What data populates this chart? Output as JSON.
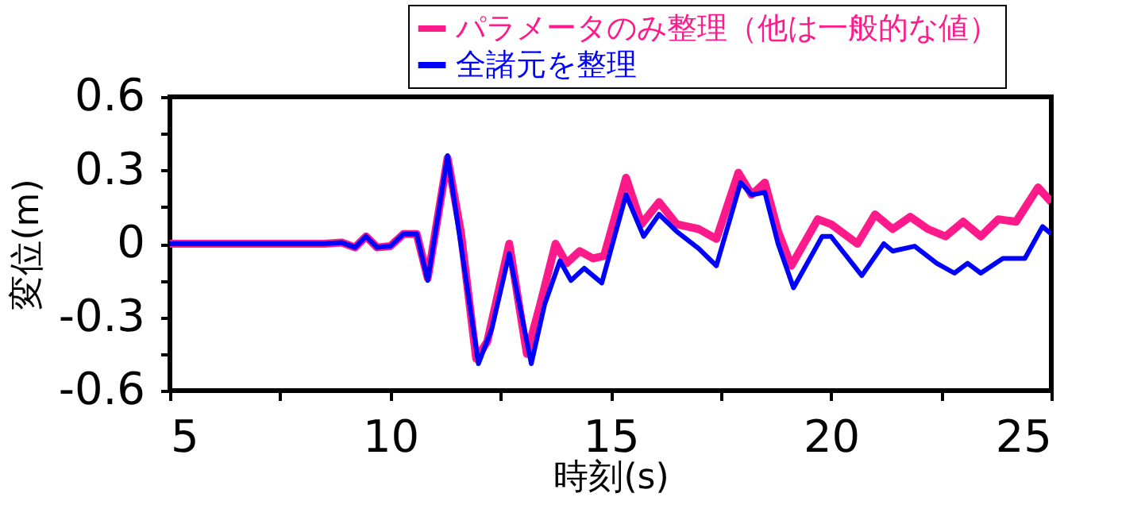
{
  "chart_data": {
    "type": "line",
    "xlabel": "時刻(s)",
    "ylabel": "変位(m)",
    "xlim": [
      5,
      25
    ],
    "xticks": [
      5,
      {
        "value": 7.5,
        "label": null
      },
      10,
      {
        "value": 12.5,
        "label": null
      },
      15,
      {
        "value": 17.5,
        "label": null
      },
      20,
      {
        "value": 22.5,
        "label": null
      },
      25
    ],
    "ylim": [
      -0.6,
      0.6
    ],
    "yticks": [
      -0.6,
      {
        "value": -0.45,
        "label": null
      },
      -0.3,
      {
        "value": -0.15,
        "label": null
      },
      0,
      {
        "value": 0.15,
        "label": null
      },
      0.3,
      {
        "value": 0.45,
        "label": null
      },
      0.6
    ],
    "grid": false,
    "legend": "top right",
    "line_style": "solid",
    "marker": "none",
    "series": [
      {
        "name": "パラメータのみ整理（他は一般的な値）",
        "color": "#ff1a8c",
        "x": [
          5,
          8.5,
          8.9,
          9.2,
          9.45,
          9.7,
          10.0,
          10.3,
          10.6,
          10.85,
          11.3,
          11.6,
          11.95,
          12.2,
          12.7,
          13.1,
          13.4,
          13.75,
          14.0,
          14.3,
          14.6,
          14.85,
          15.35,
          15.7,
          16.1,
          16.5,
          17.0,
          17.4,
          17.9,
          18.2,
          18.5,
          18.8,
          19.1,
          19.7,
          20.0,
          20.6,
          21.0,
          21.4,
          21.8,
          22.2,
          22.6,
          23.0,
          23.4,
          23.8,
          24.2,
          24.7,
          25.0
        ],
        "values": [
          0,
          0,
          0.005,
          -0.015,
          0.03,
          -0.015,
          -0.01,
          0.04,
          0.04,
          -0.14,
          0.35,
          0.05,
          -0.47,
          -0.4,
          0.0,
          -0.45,
          -0.25,
          0.0,
          -0.08,
          -0.03,
          -0.06,
          -0.05,
          0.27,
          0.08,
          0.17,
          0.08,
          0.06,
          0.02,
          0.29,
          0.2,
          0.25,
          0.05,
          -0.09,
          0.1,
          0.08,
          0.0,
          0.12,
          0.06,
          0.11,
          0.06,
          0.03,
          0.09,
          0.03,
          0.1,
          0.09,
          0.23,
          0.17
        ]
      },
      {
        "name": "全諸元を整理",
        "color": "#0000ff",
        "x": [
          5,
          8.5,
          8.9,
          9.2,
          9.45,
          9.7,
          10.0,
          10.3,
          10.6,
          10.85,
          11.3,
          11.6,
          12.0,
          12.3,
          12.7,
          13.2,
          13.5,
          13.85,
          14.1,
          14.4,
          14.8,
          15.35,
          15.75,
          16.1,
          16.5,
          17.0,
          17.4,
          17.95,
          18.2,
          18.5,
          18.8,
          19.15,
          19.8,
          20.0,
          20.7,
          21.2,
          21.4,
          21.9,
          22.4,
          22.8,
          23.1,
          23.4,
          23.9,
          24.4,
          24.8,
          25.0
        ],
        "values": [
          0,
          0,
          0.005,
          -0.015,
          0.03,
          -0.015,
          -0.01,
          0.04,
          0.04,
          -0.15,
          0.36,
          0.0,
          -0.49,
          -0.35,
          -0.04,
          -0.49,
          -0.25,
          -0.07,
          -0.15,
          -0.1,
          -0.16,
          0.2,
          0.03,
          0.12,
          0.05,
          -0.02,
          -0.09,
          0.25,
          0.2,
          0.21,
          0.0,
          -0.18,
          0.03,
          0.03,
          -0.13,
          0.0,
          -0.03,
          -0.01,
          -0.08,
          -0.12,
          -0.08,
          -0.12,
          -0.06,
          -0.06,
          0.07,
          0.04
        ]
      }
    ]
  }
}
